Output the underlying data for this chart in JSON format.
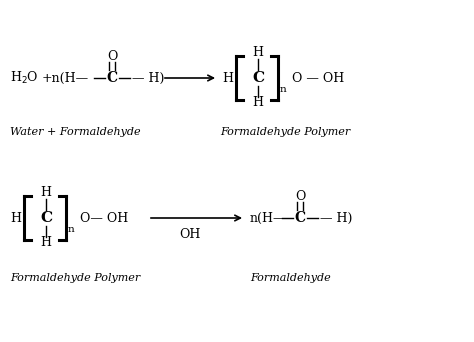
{
  "background_color": "#ffffff",
  "figsize": [
    4.74,
    3.42
  ],
  "dpi": 100,
  "top_reaction": {
    "reactant_label": "Water + Formaldehyde",
    "product_label": "Formaldehyde Polymer"
  },
  "bottom_reaction": {
    "reactant_label": "Formaldehyde Polymer",
    "product_label": "Formaldehyde",
    "catalyst": "OH"
  }
}
